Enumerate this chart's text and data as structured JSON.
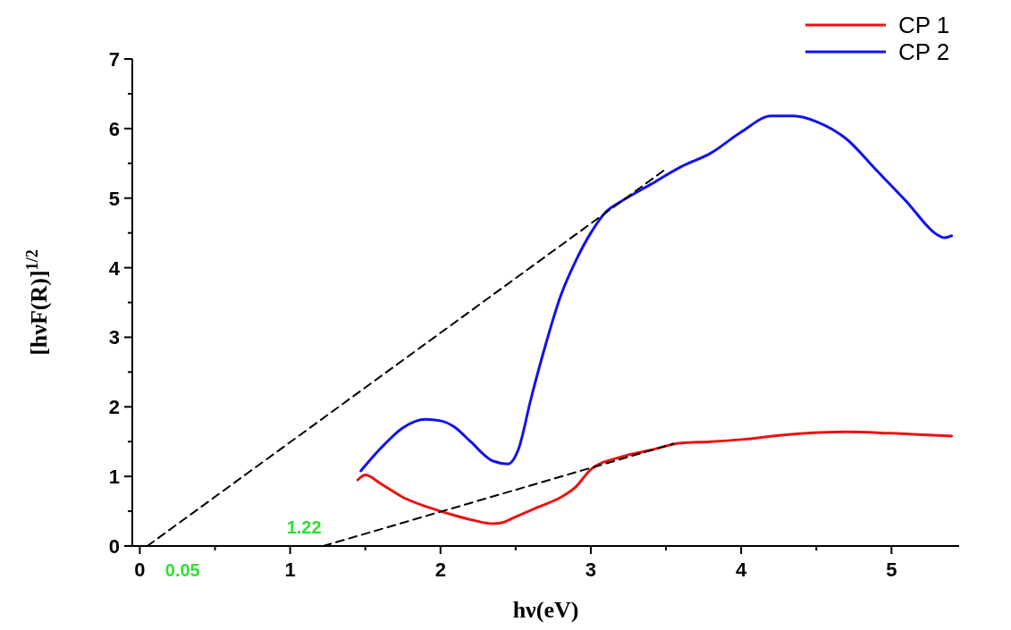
{
  "chart_data": {
    "type": "line",
    "xlabel": "hν(eV)",
    "ylabel": "[hνF(R)]$^{1/2}$",
    "xlim": [
      -0.05,
      5.45
    ],
    "ylim": [
      0,
      7
    ],
    "xticks": [
      0,
      {
        "value": 0.5,
        "label": null
      },
      1,
      {
        "value": 1.5,
        "label": null
      },
      2,
      {
        "value": 2.5,
        "label": null
      },
      3,
      {
        "value": 3.5,
        "label": null
      },
      4,
      {
        "value": 4.5,
        "label": null
      },
      5
    ],
    "yticks": [
      0,
      {
        "value": 0.5,
        "label": null
      },
      1,
      {
        "value": 1.5,
        "label": null
      },
      2,
      {
        "value": 2.5,
        "label": null
      },
      3,
      {
        "value": 3.5,
        "label": null
      },
      4,
      {
        "value": 4.5,
        "label": null
      },
      5,
      {
        "value": 5.5,
        "label": null
      },
      6,
      {
        "value": 6.5,
        "label": null
      },
      7
    ],
    "legend": "top right",
    "grid": false,
    "marker": "none",
    "line_style": "solid",
    "series": [
      {
        "name": "CP 1",
        "color": "#ee1111",
        "x": [
          1.45,
          1.5,
          1.6,
          1.75,
          1.9,
          2.0,
          2.2,
          2.35,
          2.4,
          2.5,
          2.65,
          2.8,
          2.9,
          3.0,
          3.2,
          3.4,
          3.6,
          3.8,
          4.0,
          4.3,
          4.7,
          5.0,
          5.4
        ],
        "values": [
          0.95,
          1.02,
          0.9,
          0.7,
          0.57,
          0.5,
          0.38,
          0.32,
          0.33,
          0.42,
          0.56,
          0.7,
          0.85,
          1.1,
          1.28,
          1.38,
          1.48,
          1.5,
          1.53,
          1.6,
          1.64,
          1.62,
          1.58
        ]
      },
      {
        "name": "CP 2",
        "color": "#1111ee",
        "x": [
          1.47,
          1.6,
          1.75,
          1.9,
          2.0,
          2.1,
          2.2,
          2.35,
          2.45,
          2.52,
          2.6,
          2.7,
          2.8,
          2.9,
          3.0,
          3.1,
          3.2,
          3.4,
          3.6,
          3.8,
          4.0,
          4.2,
          4.35,
          4.5,
          4.7,
          4.9,
          5.1,
          5.3,
          5.35,
          5.4
        ],
        "values": [
          1.08,
          1.4,
          1.7,
          1.82,
          1.8,
          1.7,
          1.5,
          1.22,
          1.18,
          1.4,
          2.1,
          2.9,
          3.6,
          4.1,
          4.5,
          4.8,
          4.95,
          5.2,
          5.45,
          5.65,
          5.95,
          6.18,
          6.18,
          6.1,
          5.85,
          5.4,
          4.95,
          4.48,
          4.43,
          4.46
        ]
      },
      {
        "color": "#000000",
        "line_style": "dashed",
        "x": [
          0.05,
          3.5
        ],
        "values": [
          0,
          5.42
        ]
      },
      {
        "color": "#000000",
        "line_style": "dashed",
        "x": [
          1.22,
          3.55
        ],
        "values": [
          0,
          1.47
        ]
      }
    ],
    "annotations": [
      {
        "text": "0.05",
        "x": 0.05,
        "y": 0
      },
      {
        "text": "1.22",
        "x": 1.22,
        "y": 0
      }
    ]
  }
}
